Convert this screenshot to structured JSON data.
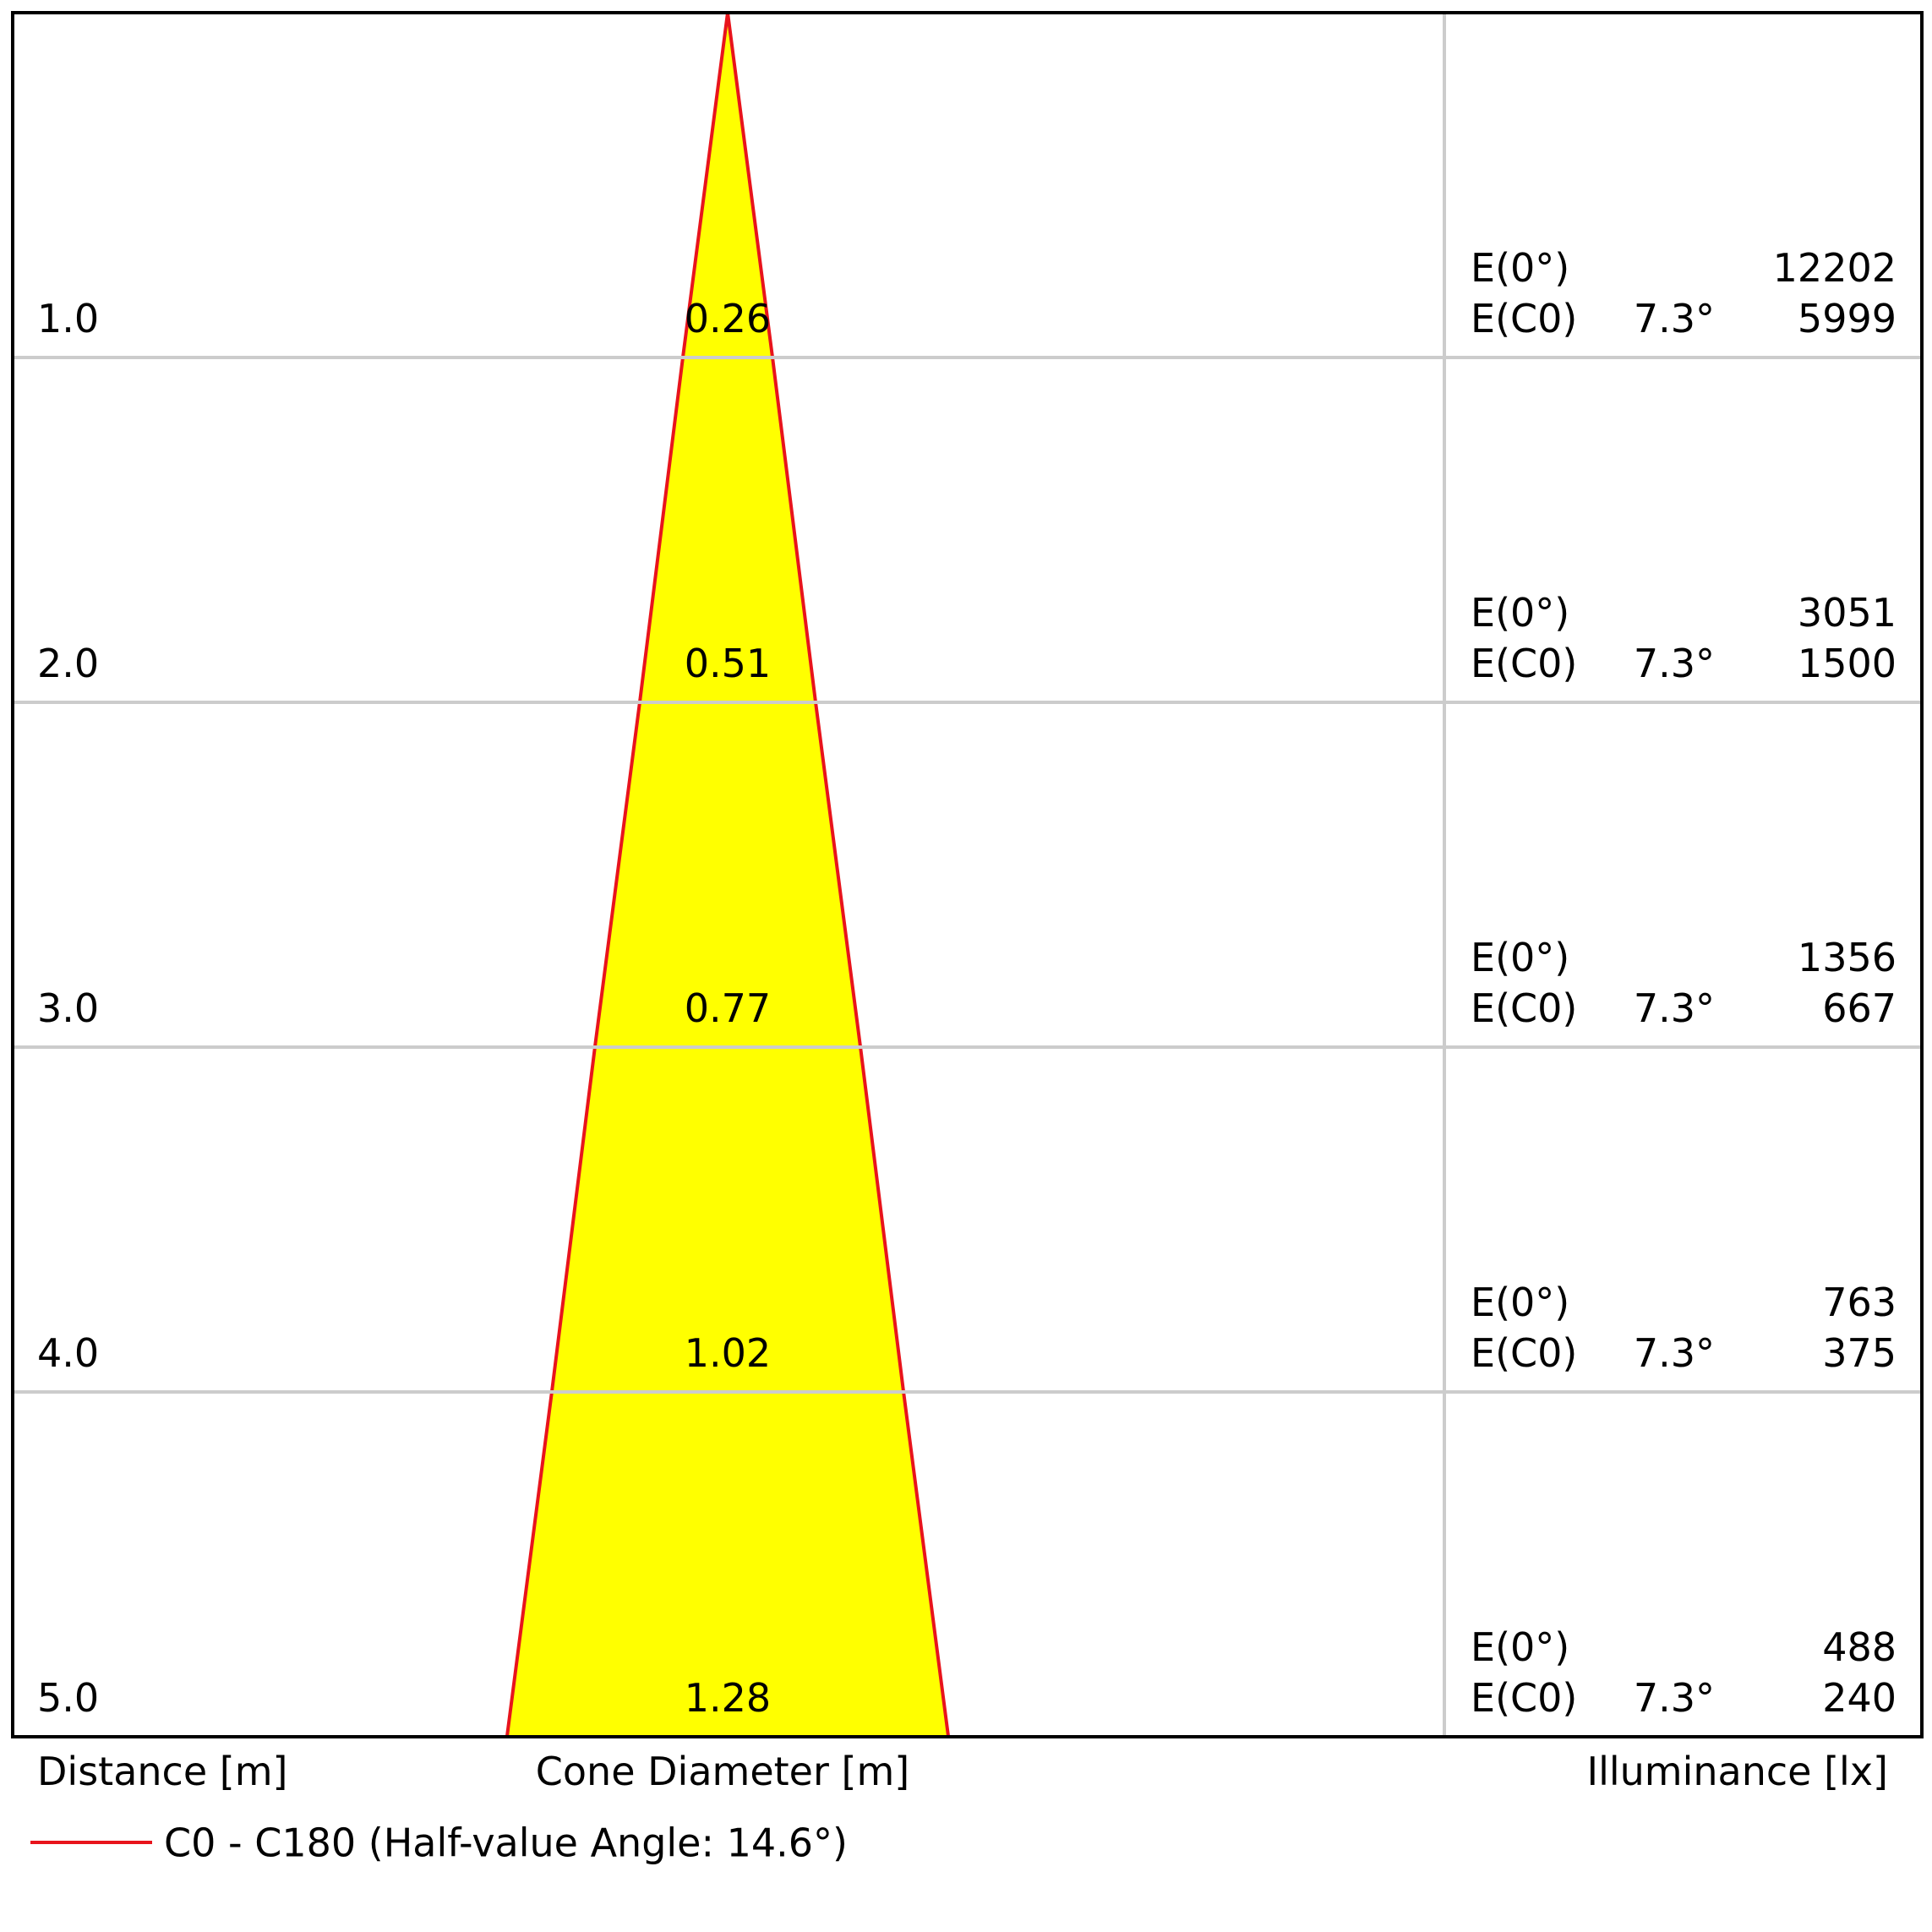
{
  "chart_data": {
    "type": "cone",
    "distance_label": "Distance [m]",
    "diameter_label": "Cone Diameter [m]",
    "illuminance_label": "Illuminance [lx]",
    "ylim": [
      0,
      5
    ],
    "distances": [
      {
        "value": 1,
        "label": "1.0"
      },
      {
        "value": 2,
        "label": "2.0"
      },
      {
        "value": 3,
        "label": "3.0"
      },
      {
        "value": 4,
        "label": "4.0"
      },
      {
        "value": 5,
        "label": "5.0"
      }
    ],
    "diameters": [
      0.26,
      0.51,
      0.77,
      1.02,
      1.28
    ],
    "center_label": "E(0°)",
    "c0_label": "E(C0)",
    "c0_angle": "7.3°",
    "e_center": [
      12202,
      3051,
      1356,
      763,
      488
    ],
    "e_c0": [
      5999,
      1500,
      667,
      375,
      240
    ],
    "fill_color": "#ffff00",
    "line_color": "#e8141c",
    "legend": "C0 - C180 (Half-value Angle: 14.6°)"
  }
}
